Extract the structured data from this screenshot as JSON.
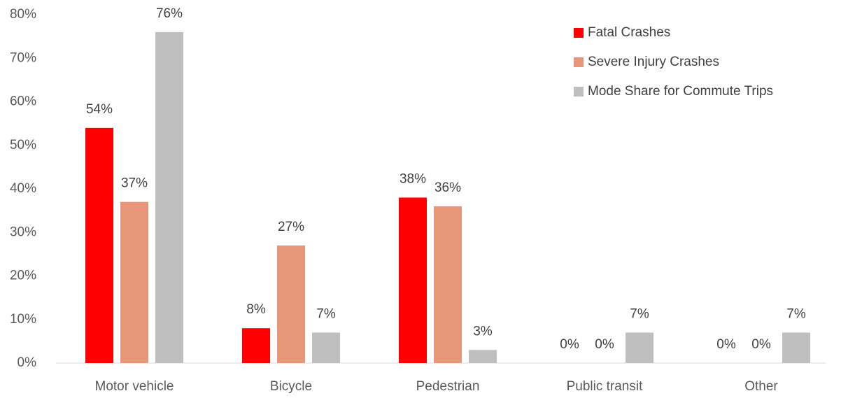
{
  "chart_data": {
    "type": "bar",
    "categories": [
      "Motor vehicle",
      "Bicycle",
      "Pedestrian",
      "Public transit",
      "Other"
    ],
    "series": [
      {
        "name": "Fatal Crashes",
        "color": "#ff0000",
        "values": [
          54,
          8,
          38,
          0,
          0
        ],
        "value_labels": [
          "54%",
          "8%",
          "38%",
          "0%",
          "0%"
        ]
      },
      {
        "name": "Severe Injury Crashes",
        "color": "#e8967a",
        "values": [
          37,
          27,
          36,
          0,
          0
        ],
        "value_labels": [
          "37%",
          "27%",
          "36%",
          "0%",
          "0%"
        ]
      },
      {
        "name": "Mode Share for Commute Trips",
        "color": "#bfbfbf",
        "values": [
          76,
          7,
          3,
          7,
          7
        ],
        "value_labels": [
          "76%",
          "7%",
          "3%",
          "7%",
          "7%"
        ]
      }
    ],
    "ylim": [
      0,
      80
    ],
    "yticks": [
      {
        "value": 0,
        "label": "0%"
      },
      {
        "value": 10,
        "label": "10%"
      },
      {
        "value": 20,
        "label": "20%"
      },
      {
        "value": 30,
        "label": "30%"
      },
      {
        "value": 40,
        "label": "40%"
      },
      {
        "value": 50,
        "label": "50%"
      },
      {
        "value": 60,
        "label": "60%"
      },
      {
        "value": 70,
        "label": "70%"
      },
      {
        "value": 80,
        "label": "80%"
      }
    ],
    "grid": false,
    "legend": "upper right"
  }
}
